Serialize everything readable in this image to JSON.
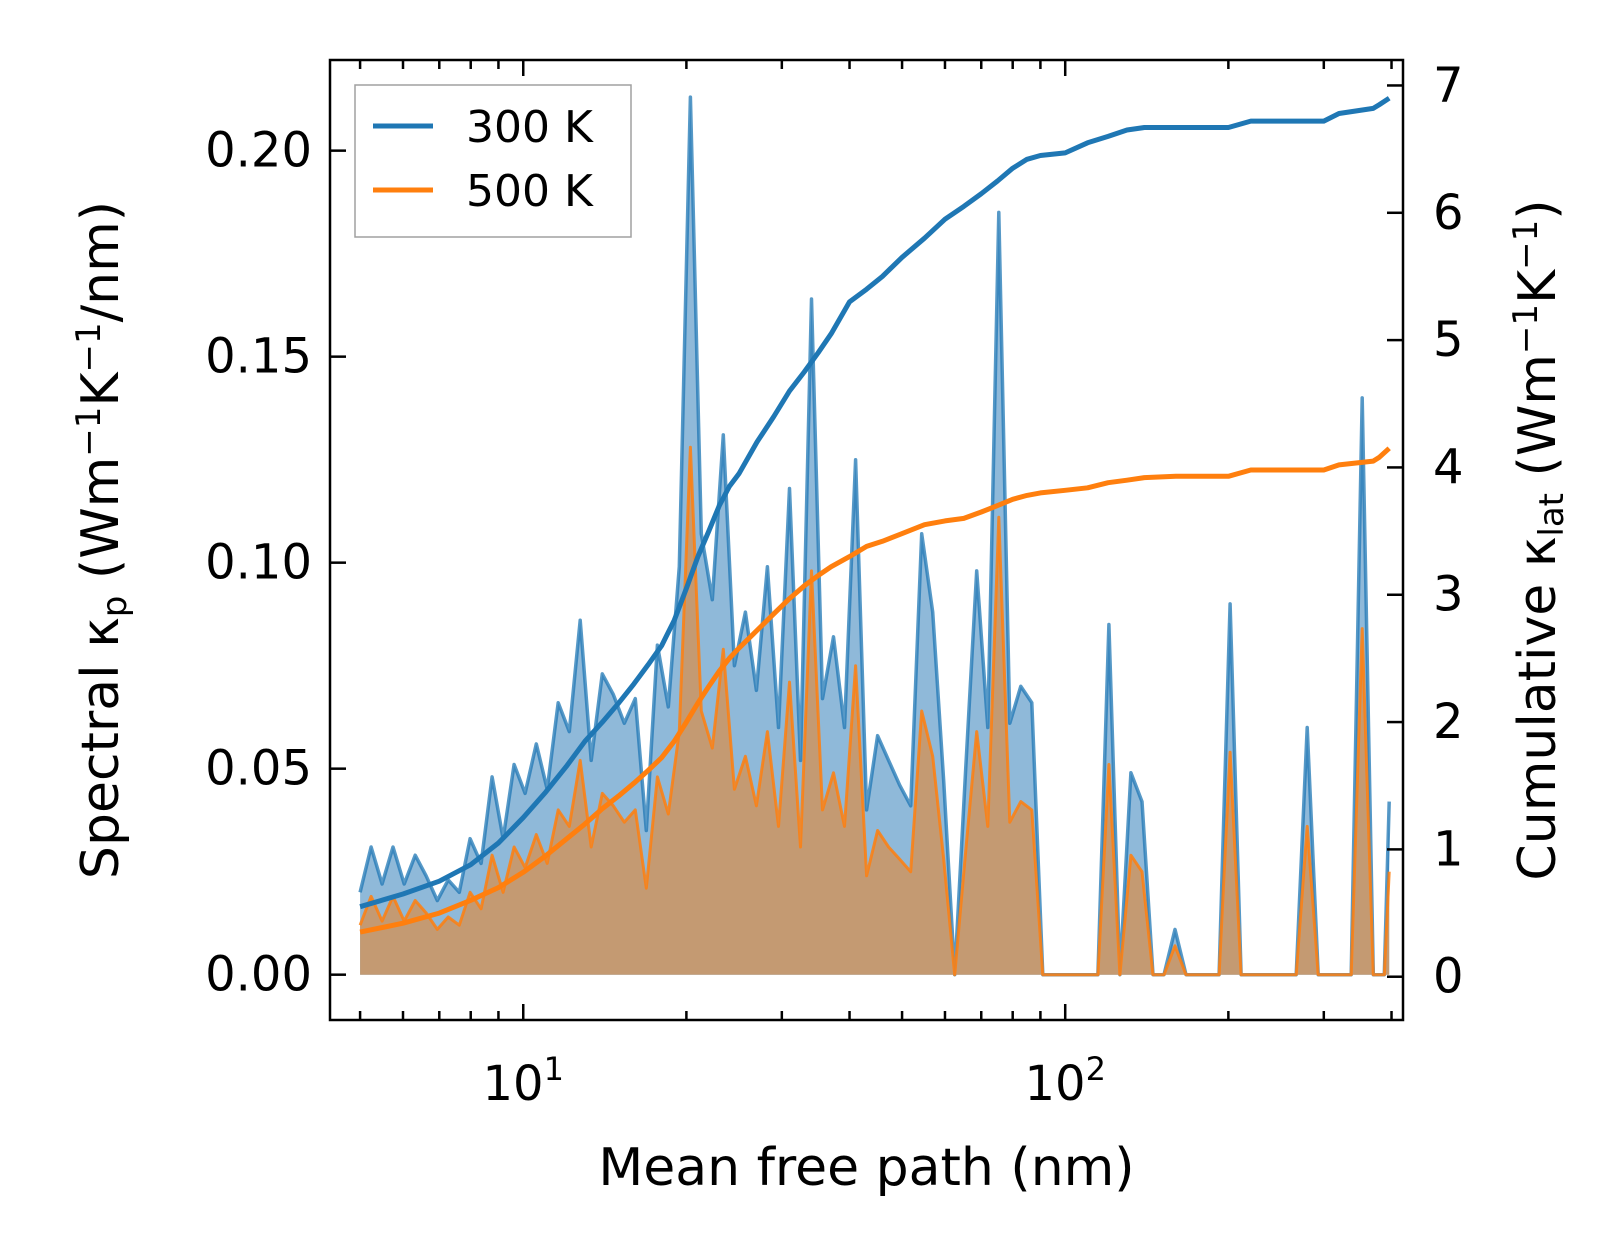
{
  "chart_data": {
    "type": "line",
    "xscale": "log",
    "xlim": [
      4.4,
      420
    ],
    "xlabel": "Mean free path (nm)",
    "x_tick_labels": [
      "10^1",
      "10^2"
    ],
    "y_left": {
      "label_parts": [
        "Spectral κ",
        "p",
        " (Wm",
        "−1",
        "K",
        "−1",
        "/nm)"
      ],
      "ylim": [
        -0.011,
        0.222
      ],
      "ticks": [
        0.0,
        0.05,
        0.1,
        0.15,
        0.2
      ],
      "tick_labels": [
        "0.00",
        "0.05",
        "0.10",
        "0.15",
        "0.20"
      ]
    },
    "y_right": {
      "label_parts": [
        "Cumulative κ",
        "lat",
        " (Wm",
        "−1",
        "K",
        "−1",
        ")"
      ],
      "ylim": [
        -0.34,
        7.2
      ],
      "ticks": [
        0,
        1,
        2,
        3,
        4,
        5,
        6,
        7
      ],
      "tick_labels": [
        "0",
        "1",
        "2",
        "3",
        "4",
        "5",
        "6",
        "7"
      ]
    },
    "legend": {
      "location": "top-left",
      "entries": [
        "300 K",
        "500 K"
      ]
    },
    "colors": {
      "300K": "#1f77b4",
      "500K": "#ff7f0e",
      "fill300": "#8fb9d9",
      "fill500": "#c49a72"
    },
    "spectral": {
      "x": [
        5.0,
        5.24,
        5.49,
        5.75,
        6.03,
        6.32,
        6.62,
        6.94,
        7.27,
        7.62,
        7.98,
        8.36,
        8.76,
        9.18,
        9.62,
        10.08,
        10.57,
        11.07,
        11.6,
        12.16,
        12.74,
        13.35,
        13.99,
        14.66,
        15.36,
        16.1,
        16.87,
        17.68,
        18.52,
        19.41,
        20.34,
        21.31,
        22.33,
        23.4,
        24.53,
        25.7,
        26.93,
        28.22,
        29.58,
        30.99,
        32.48,
        34.03,
        35.66,
        37.37,
        39.16,
        41.04,
        43.0,
        45.06,
        47.22,
        49.49,
        51.86,
        54.34,
        56.95,
        59.67,
        62.53,
        65.53,
        68.67,
        71.96,
        75.41,
        79.02,
        82.8,
        86.77,
        90.93,
        95.28,
        99.85,
        104.63,
        109.64,
        114.9,
        120.4,
        126.17,
        132.21,
        138.55,
        145.19,
        152.14,
        159.43,
        167.07,
        175.07,
        183.46,
        192.25,
        201.46,
        211.11,
        221.22,
        231.82,
        242.92,
        254.56,
        266.76,
        279.54,
        292.93,
        306.96,
        321.66,
        337.07,
        353.22,
        370.14,
        387.87,
        396.0
      ],
      "k300": [
        0.02,
        0.031,
        0.022,
        0.031,
        0.022,
        0.029,
        0.024,
        0.018,
        0.023,
        0.02,
        0.033,
        0.027,
        0.048,
        0.033,
        0.051,
        0.044,
        0.056,
        0.045,
        0.066,
        0.059,
        0.086,
        0.052,
        0.073,
        0.068,
        0.061,
        0.067,
        0.035,
        0.08,
        0.065,
        0.099,
        0.213,
        0.107,
        0.091,
        0.131,
        0.075,
        0.088,
        0.069,
        0.099,
        0.06,
        0.118,
        0.052,
        0.164,
        0.067,
        0.082,
        0.06,
        0.125,
        0.04,
        0.058,
        0.052,
        0.046,
        0.041,
        0.107,
        0.088,
        0.047,
        0.0,
        0.05,
        0.098,
        0.06,
        0.185,
        0.061,
        0.07,
        0.066,
        0.0,
        0.0,
        0.0,
        0.0,
        0.0,
        0.0,
        0.085,
        0.0,
        0.049,
        0.042,
        0.0,
        0.0,
        0.011,
        0.0,
        0.0,
        0.0,
        0.0,
        0.09,
        0.0,
        0.0,
        0.0,
        0.0,
        0.0,
        0.0,
        0.06,
        0.0,
        0.0,
        0.0,
        0.0,
        0.14,
        0.0,
        0.0,
        0.042
      ],
      "k500": [
        0.012,
        0.019,
        0.013,
        0.019,
        0.013,
        0.018,
        0.015,
        0.011,
        0.014,
        0.012,
        0.02,
        0.016,
        0.029,
        0.02,
        0.031,
        0.026,
        0.034,
        0.027,
        0.04,
        0.036,
        0.052,
        0.031,
        0.044,
        0.041,
        0.037,
        0.04,
        0.021,
        0.048,
        0.039,
        0.059,
        0.128,
        0.064,
        0.055,
        0.079,
        0.045,
        0.053,
        0.041,
        0.059,
        0.036,
        0.071,
        0.031,
        0.098,
        0.04,
        0.049,
        0.036,
        0.075,
        0.024,
        0.035,
        0.031,
        0.028,
        0.025,
        0.064,
        0.053,
        0.028,
        0.0,
        0.03,
        0.059,
        0.036,
        0.111,
        0.037,
        0.042,
        0.04,
        0.0,
        0.0,
        0.0,
        0.0,
        0.0,
        0.0,
        0.051,
        0.0,
        0.029,
        0.025,
        0.0,
        0.0,
        0.007,
        0.0,
        0.0,
        0.0,
        0.0,
        0.054,
        0.0,
        0.0,
        0.0,
        0.0,
        0.0,
        0.0,
        0.036,
        0.0,
        0.0,
        0.0,
        0.0,
        0.084,
        0.0,
        0.0,
        0.025
      ]
    },
    "series": [
      {
        "name": "300 K",
        "x": [
          5.0,
          6.0,
          7.0,
          8.0,
          9.0,
          10.0,
          11.0,
          12.0,
          13.0,
          14.0,
          15.0,
          16.0,
          17.0,
          18.0,
          19.0,
          20.0,
          21.0,
          22.0,
          23.0,
          24.0,
          25.0,
          27.0,
          29.0,
          31.0,
          33.0,
          35.0,
          37.0,
          40.0,
          43.0,
          46.0,
          50.0,
          55.0,
          60.0,
          65.0,
          70.0,
          75.0,
          80.0,
          85.0,
          90.0,
          100.0,
          110.0,
          120.0,
          130.0,
          140.0,
          160.0,
          200.0,
          220.0,
          300.0,
          320.0,
          370.0,
          380.0,
          396.0
        ],
        "values": [
          0.55,
          0.65,
          0.75,
          0.88,
          1.05,
          1.25,
          1.45,
          1.65,
          1.85,
          2.0,
          2.15,
          2.3,
          2.45,
          2.6,
          2.8,
          3.05,
          3.3,
          3.5,
          3.7,
          3.85,
          3.95,
          4.2,
          4.4,
          4.6,
          4.75,
          4.9,
          5.05,
          5.3,
          5.4,
          5.5,
          5.65,
          5.8,
          5.95,
          6.05,
          6.15,
          6.25,
          6.35,
          6.42,
          6.45,
          6.47,
          6.55,
          6.6,
          6.65,
          6.67,
          6.67,
          6.67,
          6.72,
          6.72,
          6.78,
          6.82,
          6.85,
          6.9
        ]
      },
      {
        "name": "500 K",
        "x": [
          5.0,
          6.0,
          7.0,
          8.0,
          9.0,
          10.0,
          11.0,
          12.0,
          13.0,
          14.0,
          15.0,
          16.0,
          17.0,
          18.0,
          19.0,
          20.0,
          21.0,
          22.0,
          23.0,
          24.0,
          25.0,
          27.0,
          29.0,
          31.0,
          33.0,
          35.0,
          37.0,
          40.0,
          43.0,
          46.0,
          50.0,
          55.0,
          60.0,
          65.0,
          70.0,
          75.0,
          80.0,
          85.0,
          90.0,
          100.0,
          110.0,
          120.0,
          130.0,
          140.0,
          160.0,
          200.0,
          220.0,
          300.0,
          320.0,
          370.0,
          380.0,
          396.0
        ],
        "values": [
          0.35,
          0.42,
          0.5,
          0.6,
          0.7,
          0.82,
          0.95,
          1.08,
          1.2,
          1.32,
          1.42,
          1.52,
          1.62,
          1.72,
          1.85,
          2.0,
          2.15,
          2.28,
          2.4,
          2.5,
          2.58,
          2.72,
          2.85,
          2.97,
          3.07,
          3.15,
          3.22,
          3.3,
          3.38,
          3.42,
          3.48,
          3.55,
          3.58,
          3.6,
          3.65,
          3.7,
          3.75,
          3.78,
          3.8,
          3.82,
          3.84,
          3.88,
          3.9,
          3.92,
          3.93,
          3.93,
          3.98,
          3.98,
          4.02,
          4.05,
          4.08,
          4.15
        ]
      }
    ]
  }
}
